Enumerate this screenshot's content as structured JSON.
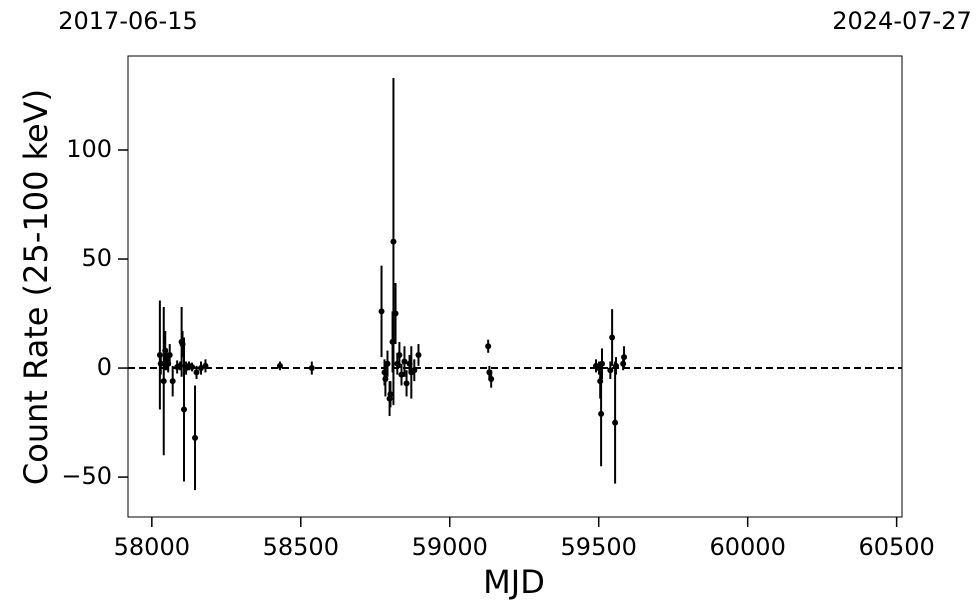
{
  "chart_data": {
    "type": "scatter",
    "xlabel": "MJD",
    "ylabel": "Count Rate (25-100 keV)",
    "x": [
      58027,
      58030,
      58040,
      58045,
      58050,
      58055,
      58060,
      58070,
      58085,
      58095,
      58100,
      58103,
      58108,
      58115,
      58125,
      58135,
      58145,
      58150,
      58165,
      58180,
      58430,
      58537,
      58771,
      58781,
      58784,
      58791,
      58798,
      58801,
      58808,
      58811,
      58818,
      58824,
      58831,
      58838,
      58848,
      58855,
      58865,
      58871,
      58881,
      58895,
      59129,
      59133,
      59139,
      59491,
      59501,
      59505,
      59508,
      59511,
      59539,
      59545,
      59555,
      59558,
      59582,
      59585
    ],
    "y": [
      6,
      2,
      -6,
      8,
      4,
      2,
      6,
      -6,
      0.5,
      1,
      12,
      11,
      -19,
      0,
      1,
      0.5,
      -32,
      -2,
      0,
      1,
      1,
      0,
      26,
      -2,
      -5,
      2,
      -14,
      -12,
      12,
      58,
      25,
      2,
      6,
      -3,
      3,
      -7,
      2,
      -2,
      -1,
      6,
      10,
      -2,
      -5,
      1,
      0,
      -6,
      -21,
      2,
      -1,
      14,
      -25,
      1,
      2,
      5
    ],
    "yerr": [
      25,
      5,
      34,
      9,
      5,
      4,
      5,
      7,
      3,
      2,
      16,
      6,
      33,
      3,
      2,
      2,
      24,
      3,
      3,
      3,
      2,
      3,
      21,
      6,
      8,
      6,
      8,
      6,
      14,
      75,
      14,
      5,
      6,
      5,
      7,
      6,
      4,
      12,
      5,
      5,
      3,
      3,
      4,
      3,
      3,
      8,
      24,
      7,
      4,
      13,
      28,
      4,
      3,
      5
    ],
    "color": "#000000",
    "hline": 0,
    "xlim": [
      57920,
      60518
    ],
    "ylim": [
      -68.3,
      143.1
    ],
    "xticks": [
      58000,
      58500,
      59000,
      59500,
      60000,
      60500
    ],
    "yticks": [
      {
        "value": -50,
        "label": "−50"
      },
      0,
      50,
      100
    ],
    "x2ticks": [
      {
        "value": 57920,
        "label": "2017-06-15"
      },
      {
        "value": 60518,
        "label": "2024-07-27"
      }
    ]
  }
}
